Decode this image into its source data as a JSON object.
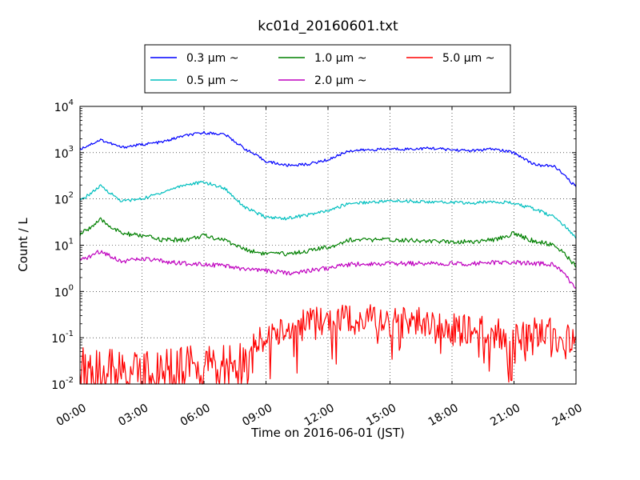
{
  "chart_data": {
    "type": "line",
    "title": "kc01d_20160601.txt",
    "xlabel": "Time on 2016-06-01 (JST)",
    "ylabel": "Count / L",
    "yscale": "log",
    "xlim": [
      "00:00",
      "24:00"
    ],
    "ylim": [
      0.01,
      10000
    ],
    "grid": true,
    "legend_position": "top-center",
    "x_tick_labels": [
      "00:00",
      "03:00",
      "06:00",
      "09:00",
      "12:00",
      "15:00",
      "18:00",
      "21:00",
      "24:00"
    ],
    "y_tick_labels": [
      {
        "base": "10",
        "exp": "-2"
      },
      {
        "base": "10",
        "exp": "-1"
      },
      {
        "base": "10",
        "exp": "0"
      },
      {
        "base": "10",
        "exp": "1"
      },
      {
        "base": "10",
        "exp": "2"
      },
      {
        "base": "10",
        "exp": "3"
      },
      {
        "base": "10",
        "exp": "4"
      }
    ],
    "x_hours": [
      0,
      1,
      2,
      3,
      4,
      5,
      6,
      7,
      8,
      9,
      10,
      11,
      12,
      13,
      14,
      15,
      16,
      17,
      18,
      19,
      20,
      21,
      22,
      23,
      24
    ],
    "series": [
      {
        "name": "0.3 μm ~",
        "color": "#0000ff",
        "values": [
          1200,
          1900,
          1300,
          1500,
          1700,
          2300,
          2700,
          2500,
          1200,
          650,
          530,
          560,
          700,
          1100,
          1150,
          1200,
          1200,
          1250,
          1150,
          1100,
          1200,
          1000,
          550,
          500,
          180
        ]
      },
      {
        "name": "0.5 μm ~",
        "color": "#00bfbf",
        "values": [
          90,
          190,
          90,
          100,
          140,
          200,
          230,
          170,
          65,
          40,
          38,
          45,
          55,
          80,
          85,
          90,
          90,
          85,
          85,
          80,
          90,
          80,
          60,
          40,
          15
        ]
      },
      {
        "name": "1.0 μm ~",
        "color": "#008000",
        "values": [
          17,
          35,
          18,
          16,
          13,
          13,
          16,
          13,
          8,
          6.5,
          6.5,
          7.5,
          9,
          13,
          13,
          13,
          13,
          12,
          12,
          12,
          13,
          18,
          12,
          10,
          3.5
        ]
      },
      {
        "name": "2.0 μm ~",
        "color": "#bf00bf",
        "values": [
          4.5,
          7.5,
          4.5,
          5,
          4.5,
          4,
          4,
          3.5,
          3,
          2.8,
          2.5,
          2.8,
          3.2,
          3.8,
          4,
          4,
          4,
          4,
          4,
          4,
          4.2,
          4.2,
          4,
          3.8,
          1.2
        ]
      },
      {
        "name": "5.0 μm ~",
        "color": "#ff0000",
        "values": [
          0.03,
          0.03,
          0.025,
          0.025,
          0.025,
          0.03,
          0.03,
          0.035,
          0.04,
          0.1,
          0.15,
          0.2,
          0.22,
          0.25,
          0.25,
          0.22,
          0.22,
          0.18,
          0.15,
          0.15,
          0.12,
          0.1,
          0.12,
          0.12,
          0.07
        ]
      }
    ]
  }
}
